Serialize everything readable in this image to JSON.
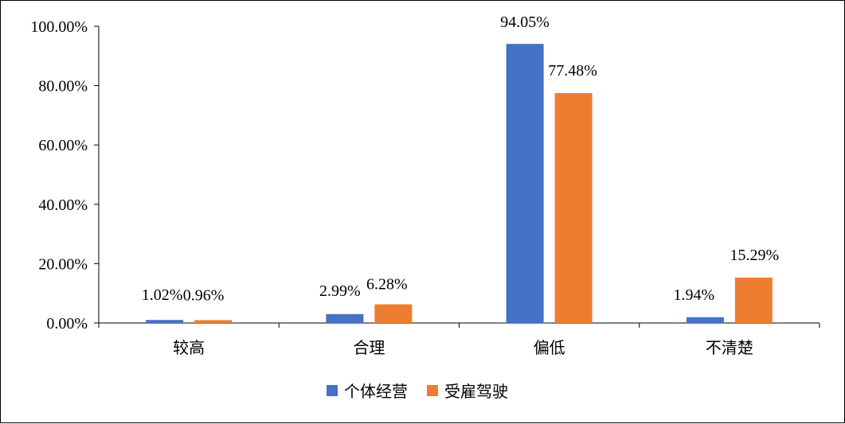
{
  "chart_data": {
    "type": "bar",
    "categories": [
      "较高",
      "合理",
      "偏低",
      "不清楚"
    ],
    "series": [
      {
        "name": "个体经营",
        "values": [
          1.02,
          2.99,
          94.05,
          1.94
        ],
        "labels": [
          "1.02%",
          "2.99%",
          "94.05%",
          "1.94%"
        ],
        "color": "#4472C4"
      },
      {
        "name": "受雇驾驶",
        "values": [
          0.96,
          6.28,
          77.48,
          15.29
        ],
        "labels": [
          "0.96%",
          "6.28%",
          "77.48%",
          "15.29%"
        ],
        "color": "#ED7D31"
      }
    ],
    "y_ticks": [
      "0.00%",
      "20.00%",
      "40.00%",
      "60.00%",
      "80.00%",
      "100.00%"
    ],
    "ylim": [
      0,
      100
    ],
    "title": "",
    "xlabel": "",
    "ylabel": "",
    "legend_position": "bottom",
    "grid": false
  }
}
